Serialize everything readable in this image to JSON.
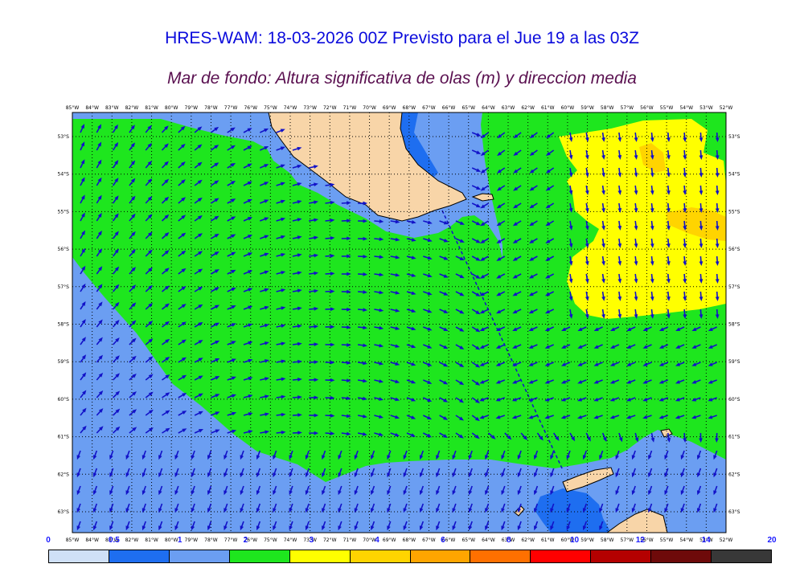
{
  "title": "HRES-WAM: 18-03-2026 00Z Previsto para el Jue 19 a las 03Z",
  "subtitle": "Mar de fondo: Altura significativa de olas (m) y direccion media",
  "lon_labels": [
    "85°W",
    "84°W",
    "83°W",
    "82°W",
    "81°W",
    "80°W",
    "79°W",
    "78°W",
    "77°W",
    "76°W",
    "75°W",
    "74°W",
    "73°W",
    "72°W",
    "71°W",
    "70°W",
    "69°W",
    "68°W",
    "67°W",
    "66°W",
    "65°W",
    "64°W",
    "63°W",
    "62°W",
    "61°W",
    "60°W",
    "59°W",
    "58°W",
    "57°W",
    "56°W",
    "55°W",
    "54°W",
    "53°W",
    "52°W"
  ],
  "lat_labels": [
    "53°S",
    "54°S",
    "55°S",
    "56°S",
    "57°S",
    "58°S",
    "59°S",
    "60°S",
    "61°S",
    "62°S",
    "63°S"
  ],
  "legend": {
    "labels": [
      "0",
      "0.5",
      "1",
      "2",
      "3",
      "4",
      "6",
      "8",
      "10",
      "12",
      "14",
      "20"
    ],
    "colors": [
      "#cfe0f7",
      "#1e6ef0",
      "#6b9ef2",
      "#1ee61e",
      "#ffff00",
      "#ffd400",
      "#ffa500",
      "#ff7000",
      "#ff0000",
      "#b40000",
      "#6e0a0a",
      "#383838"
    ]
  },
  "map_colors": {
    "band_0_5_to_1": "#1e6ef0",
    "band_1_to_2": "#6b9ef2",
    "band_2_to_3": "#1ee61e",
    "band_3_to_4": "#ffff00",
    "band_4_to_6": "#ffd400",
    "land": "#f8d5a8",
    "arrows": "#1212c8"
  }
}
